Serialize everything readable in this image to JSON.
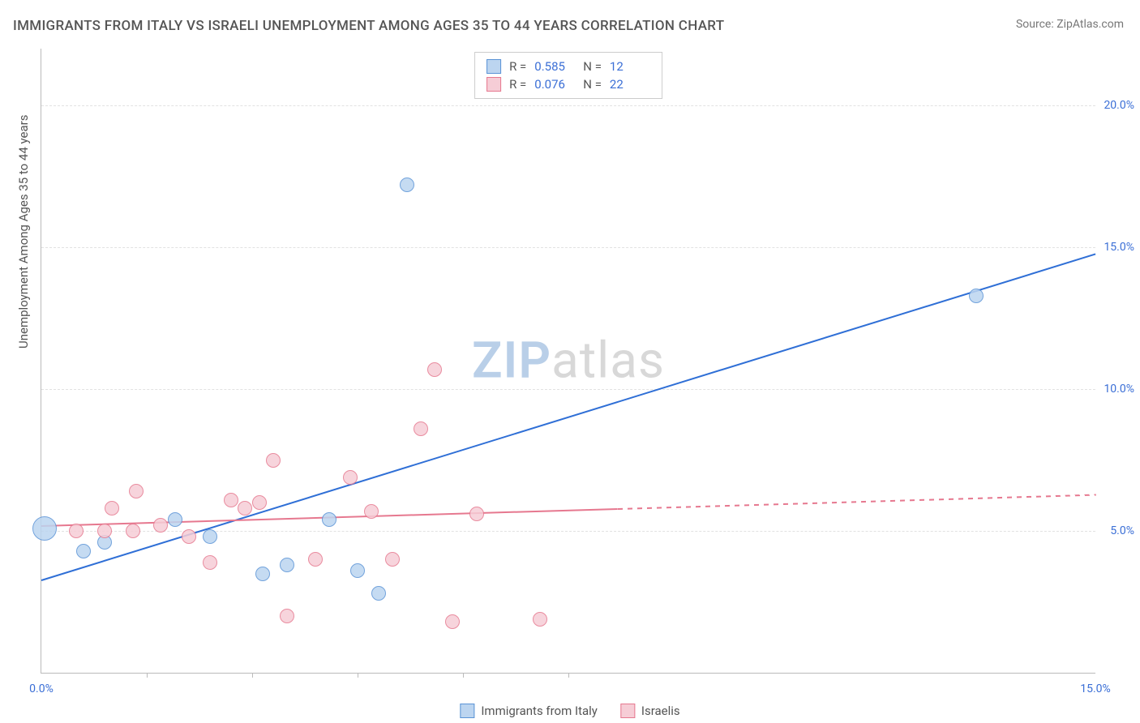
{
  "title": "IMMIGRANTS FROM ITALY VS ISRAELI UNEMPLOYMENT AMONG AGES 35 TO 44 YEARS CORRELATION CHART",
  "source": "Source: ZipAtlas.com",
  "ylabel": "Unemployment Among Ages 35 to 44 years",
  "watermark": {
    "a": "ZIP",
    "b": "atlas"
  },
  "chart": {
    "type": "scatter",
    "background_color": "#ffffff",
    "grid_color": "#e2e2e2",
    "axis_color": "#bbbbbb",
    "xlim": [
      0,
      15
    ],
    "ylim": [
      0,
      22
    ],
    "yticks": [
      {
        "v": 5,
        "label": "5.0%"
      },
      {
        "v": 10,
        "label": "10.0%"
      },
      {
        "v": 15,
        "label": "15.0%"
      },
      {
        "v": 20,
        "label": "20.0%"
      }
    ],
    "xticks_minor": [
      1.5,
      3.0,
      4.5,
      6.0,
      7.5
    ],
    "xtick_labels": [
      {
        "v": 0,
        "label": "0.0%"
      },
      {
        "v": 15,
        "label": "15.0%"
      }
    ],
    "series": [
      {
        "name": "Immigrants from Italy",
        "color_fill": "#bcd5f0",
        "color_stroke": "#5a93d6",
        "marker_r": 8,
        "R": "0.585",
        "N": "12",
        "trend": {
          "x1": 0,
          "y1": 3.3,
          "x2": 15,
          "y2": 14.8,
          "color": "#2f6fd6",
          "width": 2,
          "dash": false,
          "solid_until_x": 15
        },
        "points": [
          {
            "x": 0.05,
            "y": 5.1,
            "r": 14
          },
          {
            "x": 0.6,
            "y": 4.3
          },
          {
            "x": 0.9,
            "y": 4.6
          },
          {
            "x": 1.9,
            "y": 5.4
          },
          {
            "x": 2.4,
            "y": 4.8
          },
          {
            "x": 3.15,
            "y": 3.5
          },
          {
            "x": 3.5,
            "y": 3.8
          },
          {
            "x": 4.1,
            "y": 5.4
          },
          {
            "x": 4.5,
            "y": 3.6
          },
          {
            "x": 4.8,
            "y": 2.8
          },
          {
            "x": 5.2,
            "y": 17.2
          },
          {
            "x": 13.3,
            "y": 13.3
          }
        ]
      },
      {
        "name": "Israelis",
        "color_fill": "#f6cdd6",
        "color_stroke": "#e6788f",
        "marker_r": 8,
        "R": "0.076",
        "N": "22",
        "trend": {
          "x1": 0,
          "y1": 5.2,
          "x2": 15,
          "y2": 6.3,
          "color": "#e6788f",
          "width": 2,
          "dash": true,
          "solid_until_x": 8.2
        },
        "points": [
          {
            "x": 0.5,
            "y": 5.0
          },
          {
            "x": 0.9,
            "y": 5.0
          },
          {
            "x": 1.0,
            "y": 5.8
          },
          {
            "x": 1.3,
            "y": 5.0
          },
          {
            "x": 1.35,
            "y": 6.4
          },
          {
            "x": 1.7,
            "y": 5.2
          },
          {
            "x": 2.1,
            "y": 4.8
          },
          {
            "x": 2.4,
            "y": 3.9
          },
          {
            "x": 2.7,
            "y": 6.1
          },
          {
            "x": 2.9,
            "y": 5.8
          },
          {
            "x": 3.1,
            "y": 6.0
          },
          {
            "x": 3.3,
            "y": 7.5
          },
          {
            "x": 3.5,
            "y": 2.0
          },
          {
            "x": 3.9,
            "y": 4.0
          },
          {
            "x": 4.4,
            "y": 6.9
          },
          {
            "x": 4.7,
            "y": 5.7
          },
          {
            "x": 5.0,
            "y": 4.0
          },
          {
            "x": 5.4,
            "y": 8.6
          },
          {
            "x": 5.6,
            "y": 10.7
          },
          {
            "x": 5.85,
            "y": 1.8
          },
          {
            "x": 6.2,
            "y": 5.6
          },
          {
            "x": 7.1,
            "y": 1.9
          }
        ]
      }
    ],
    "legend_bottom": [
      {
        "label": "Immigrants from Italy",
        "fill": "#bcd5f0",
        "stroke": "#5a93d6"
      },
      {
        "label": "Israelis",
        "fill": "#f6cdd6",
        "stroke": "#e6788f"
      }
    ]
  }
}
